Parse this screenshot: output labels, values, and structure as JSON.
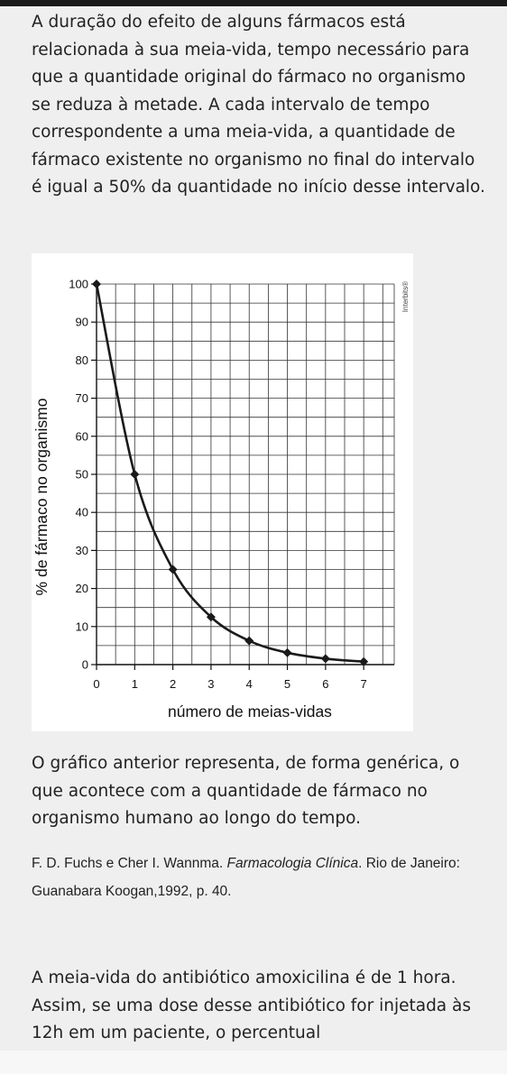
{
  "intro_text": "A duração do efeito de alguns fármacos está relacionada à sua meia-vida, tempo necessário para que a quantidade original do fármaco no organismo se reduza à metade. A cada intervalo de tempo correspondente a uma meia-vida, a quantidade de fármaco existente no organismo no final do intervalo é igual a 50% da quantidade no início desse intervalo.",
  "chart_data": {
    "type": "line",
    "x": [
      0,
      1,
      2,
      3,
      4,
      5,
      6,
      7
    ],
    "y": [
      100,
      50,
      25,
      12.5,
      6.25,
      3.125,
      1.5625,
      0.78125
    ],
    "xlabel": "número de meias-vidas",
    "ylabel": "% de fármaco no organismo",
    "xticks": [
      "0",
      "1",
      "2",
      "3",
      "4",
      "5",
      "6",
      "7"
    ],
    "yticks": [
      "0",
      "10",
      "20",
      "30",
      "40",
      "50",
      "60",
      "70",
      "80",
      "90",
      "100"
    ],
    "xlim": [
      0,
      7.8
    ],
    "ylim": [
      0,
      100
    ],
    "grid": true,
    "line_color": "#1a1a1a",
    "credit": "Interbits®"
  },
  "description_text": "O gráfico anterior representa, de forma genérica, o que acontece com a quantidade de fármaco no organismo humano ao longo do tempo.",
  "citation": {
    "authors": "F. D. Fuchs e Cher I. Wannma. ",
    "book_title": "Farmacologia Clínica",
    "publisher": ". Rio de Janeiro: Guanabara Koogan,1992, p. 40."
  },
  "question_text": "A meia-vida do antibiótico amoxicilina é de 1 hora. Assim, se uma dose desse antibiótico for injetada às 12h em um paciente, o percentual"
}
